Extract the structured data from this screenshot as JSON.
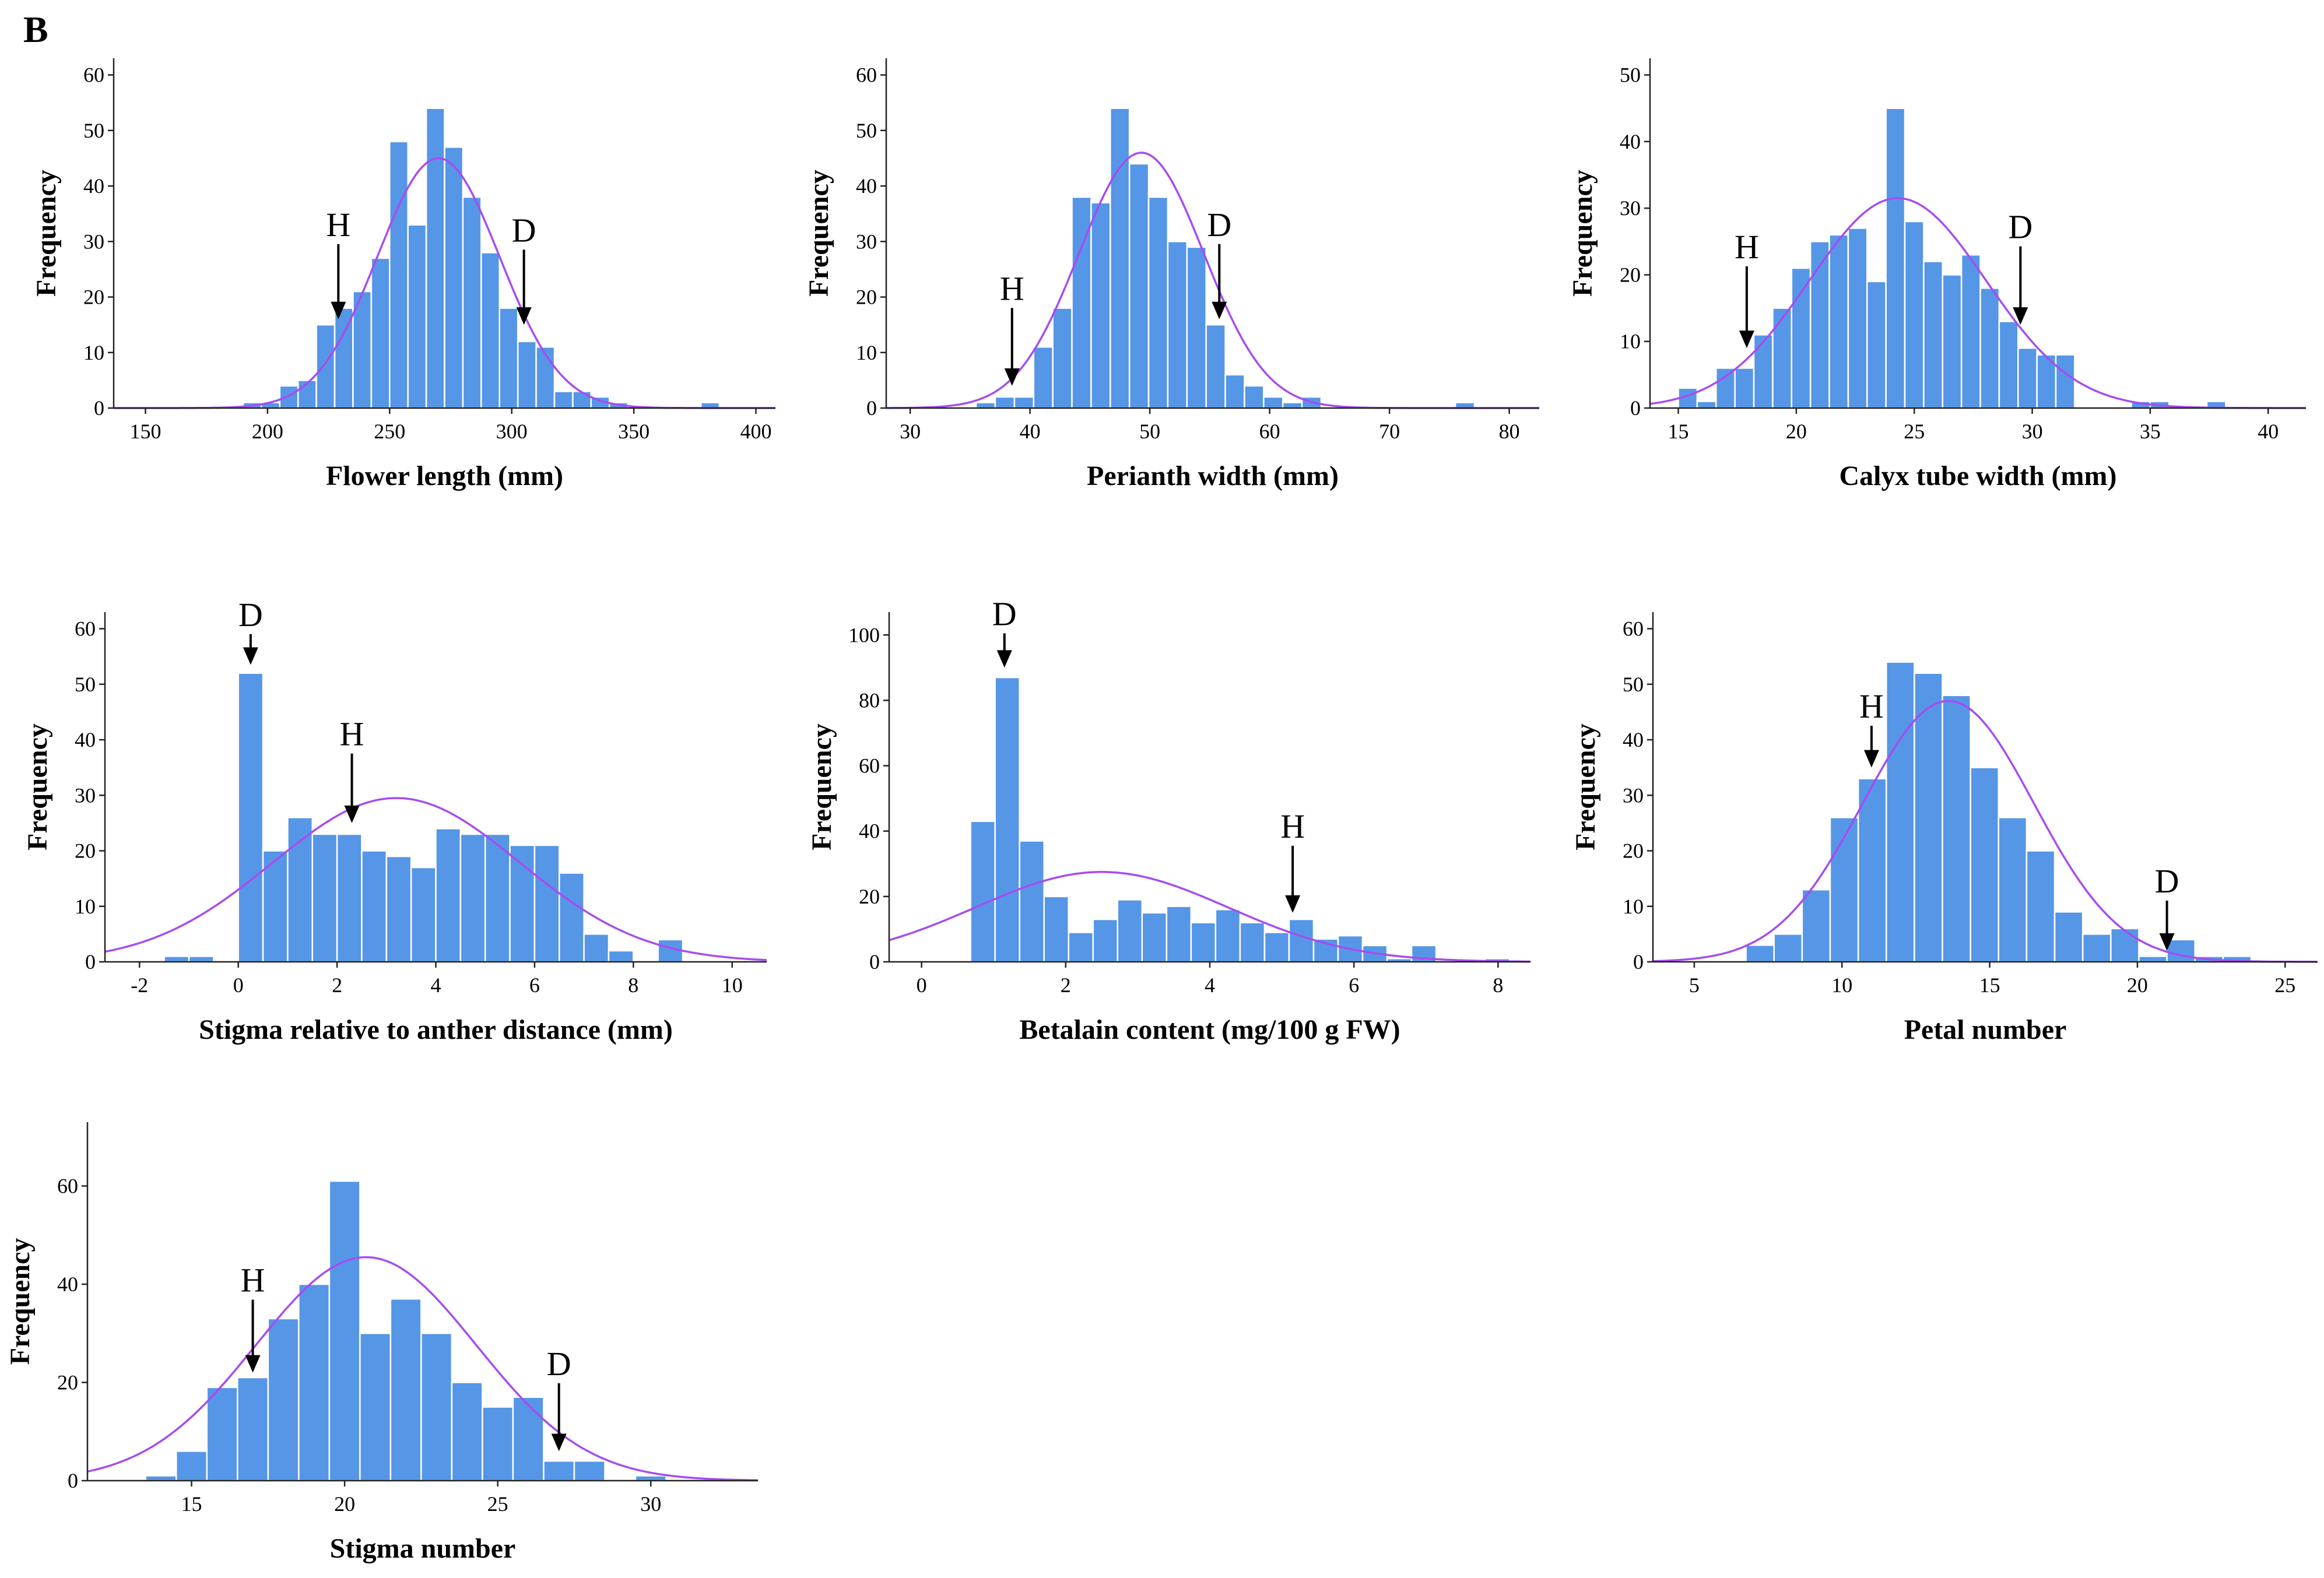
{
  "figure": {
    "panel_label": "B"
  },
  "chart_data": [
    {
      "type": "bar",
      "title": "",
      "xlabel": "Flower length (mm)",
      "ylabel": "Frequency",
      "xlim": [
        137,
        408
      ],
      "ylim": [
        0,
        63
      ],
      "xticks": [
        150,
        200,
        250,
        300,
        350,
        400
      ],
      "yticks": [
        0,
        10,
        20,
        30,
        40,
        50,
        60
      ],
      "bin_width": 7.5,
      "bin_starts": [
        190,
        197.5,
        205,
        212.5,
        220,
        227.5,
        235,
        242.5,
        250,
        257.5,
        265,
        272.5,
        280,
        287.5,
        295,
        302.5,
        310,
        317.5,
        325,
        332.5,
        340,
        347.5,
        355,
        362.5,
        370,
        377.5
      ],
      "values": [
        1,
        1,
        4,
        5,
        15,
        18,
        21,
        27,
        48,
        33,
        54,
        47,
        38,
        28,
        18,
        12,
        11,
        3,
        3,
        2,
        1,
        0,
        0,
        0,
        0,
        1
      ],
      "normal_curve": {
        "mean": 270,
        "sd": 25,
        "peak": 45
      },
      "annotations": [
        {
          "label": "H",
          "x": 229,
          "label_y": 31,
          "tip_y": 16
        },
        {
          "label": "D",
          "x": 305,
          "label_y": 30,
          "tip_y": 15
        }
      ]
    },
    {
      "type": "bar",
      "title": "",
      "xlabel": "Perianth width (mm)",
      "ylabel": "Frequency",
      "xlim": [
        28,
        82.5
      ],
      "ylim": [
        0,
        63
      ],
      "xticks": [
        30,
        40,
        50,
        60,
        70,
        80
      ],
      "yticks": [
        0,
        10,
        20,
        30,
        40,
        50,
        60
      ],
      "bin_width": 1.6,
      "bin_starts": [
        35.5,
        37.1,
        38.7,
        40.3,
        41.9,
        43.5,
        45.1,
        46.7,
        48.3,
        49.9,
        51.5,
        53.1,
        54.7,
        56.3,
        57.9,
        59.5,
        61.1,
        62.7,
        64.3,
        65.9,
        67.5,
        69.1,
        70.7,
        72.3,
        73.9,
        75.5
      ],
      "values": [
        1,
        2,
        2,
        11,
        18,
        38,
        37,
        54,
        44,
        38,
        30,
        29,
        15,
        6,
        4,
        2,
        1,
        2,
        0,
        0,
        0,
        0,
        0,
        0,
        0,
        1
      ],
      "normal_curve": {
        "mean": 49.3,
        "sd": 5.2,
        "peak": 46
      },
      "annotations": [
        {
          "label": "H",
          "x": 38.5,
          "label_y": 19.5,
          "tip_y": 4
        },
        {
          "label": "D",
          "x": 55.8,
          "label_y": 31,
          "tip_y": 16
        }
      ]
    },
    {
      "type": "bar",
      "title": "",
      "xlabel": "Calyx tube width (mm)",
      "ylabel": "Frequency",
      "xlim": [
        13.8,
        41.6
      ],
      "ylim": [
        0,
        52.5
      ],
      "xticks": [
        15,
        20,
        25,
        30,
        35,
        40
      ],
      "yticks": [
        0,
        10,
        20,
        30,
        40,
        50
      ],
      "bin_width": 0.8,
      "bin_starts": [
        15.0,
        15.8,
        16.6,
        17.4,
        18.2,
        19.0,
        19.8,
        20.6,
        21.4,
        22.2,
        23.0,
        23.8,
        24.6,
        25.4,
        26.2,
        27.0,
        27.8,
        28.6,
        29.4,
        30.2,
        31.0,
        31.8,
        32.6,
        33.4,
        34.2,
        35.0,
        35.8,
        36.6,
        37.4
      ],
      "values": [
        3,
        1,
        6,
        6,
        11,
        15,
        21,
        25,
        26,
        27,
        19,
        45,
        28,
        22,
        20,
        23,
        18,
        13,
        9,
        8,
        8,
        0,
        0,
        0,
        1,
        1,
        0,
        0,
        1
      ],
      "normal_curve": {
        "mean": 24.3,
        "sd": 3.75,
        "peak": 31.5
      },
      "annotations": [
        {
          "label": "H",
          "x": 17.9,
          "label_y": 22.5,
          "tip_y": 9
        },
        {
          "label": "D",
          "x": 29.5,
          "label_y": 25.5,
          "tip_y": 12.5
        }
      ]
    },
    {
      "type": "bar",
      "title": "",
      "xlabel": "Stigma relative to anther distance (mm)",
      "ylabel": "Frequency",
      "xlim": [
        -2.7,
        10.7
      ],
      "ylim": [
        0,
        63
      ],
      "xticks": [
        -2,
        0,
        2,
        4,
        6,
        8,
        10
      ],
      "yticks": [
        0,
        10,
        20,
        30,
        40,
        50,
        60
      ],
      "tick_labels": [
        "-2",
        "0",
        "2",
        "4",
        "6",
        "8",
        "10"
      ],
      "bin_width": 0.5,
      "bin_starts": [
        -1.5,
        -1.0,
        -0.5,
        0.0,
        0.5,
        1.0,
        1.5,
        2.0,
        2.5,
        3.0,
        3.5,
        4.0,
        4.5,
        5.0,
        5.5,
        6.0,
        6.5,
        7.0,
        7.5,
        8.0,
        8.5
      ],
      "values": [
        1,
        1,
        0,
        52,
        20,
        26,
        23,
        23,
        20,
        19,
        17,
        24,
        23,
        23,
        21,
        21,
        16,
        5,
        2,
        0,
        4
      ],
      "normal_curve": {
        "mean": 3.2,
        "sd": 2.5,
        "peak": 29.5
      },
      "annotations": [
        {
          "label": "D",
          "x": 0.25,
          "label_y": 60.5,
          "tip_y": 53.5
        },
        {
          "label": "H",
          "x": 2.3,
          "label_y": 39,
          "tip_y": 25
        }
      ]
    },
    {
      "type": "bar",
      "title": "",
      "xlabel": "Betalain content (mg/100 g FW)",
      "ylabel": "Frequency",
      "xlim": [
        -0.45,
        8.45
      ],
      "ylim": [
        0,
        107
      ],
      "xticks": [
        0,
        2,
        4,
        6,
        8
      ],
      "yticks": [
        0,
        20,
        40,
        60,
        80,
        100
      ],
      "bin_width": 0.34,
      "bin_starts": [
        0.68,
        1.02,
        1.36,
        1.7,
        2.04,
        2.38,
        2.72,
        3.06,
        3.4,
        3.74,
        4.08,
        4.42,
        4.76,
        5.1,
        5.44,
        5.78,
        6.12,
        6.46,
        6.8,
        7.14,
        7.48,
        7.82
      ],
      "values": [
        43,
        87,
        37,
        20,
        9,
        13,
        19,
        15,
        17,
        12,
        16,
        12,
        9,
        13,
        7,
        8,
        5,
        1,
        5,
        0,
        0,
        1
      ],
      "normal_curve": {
        "mean": 2.5,
        "sd": 1.75,
        "peak": 27.5
      },
      "annotations": [
        {
          "label": "D",
          "x": 1.15,
          "label_y": 103,
          "tip_y": 90
        },
        {
          "label": "H",
          "x": 5.15,
          "label_y": 38,
          "tip_y": 15
        }
      ]
    },
    {
      "type": "bar",
      "title": "",
      "xlabel": "Petal number",
      "ylabel": "Frequency",
      "xlim": [
        3.6,
        26.1
      ],
      "ylim": [
        0,
        63
      ],
      "xticks": [
        5,
        10,
        15,
        20,
        25
      ],
      "yticks": [
        0,
        10,
        20,
        30,
        40,
        50,
        60
      ],
      "bin_width": 0.95,
      "bin_starts": [
        6.75,
        7.7,
        8.65,
        9.6,
        10.55,
        11.5,
        12.45,
        13.4,
        14.35,
        15.3,
        16.25,
        17.2,
        18.15,
        19.1,
        20.05,
        21.0,
        21.95,
        22.9,
        23.85
      ],
      "values": [
        3,
        5,
        13,
        26,
        33,
        54,
        52,
        48,
        35,
        26,
        20,
        9,
        5,
        6,
        1,
        4,
        1,
        1,
        0
      ],
      "normal_curve": {
        "mean": 13.6,
        "sd": 2.9,
        "peak": 47
      },
      "annotations": [
        {
          "label": "H",
          "x": 11.0,
          "label_y": 44,
          "tip_y": 35
        },
        {
          "label": "D",
          "x": 21.0,
          "label_y": 12.5,
          "tip_y": 2
        }
      ]
    },
    {
      "type": "bar",
      "title": "",
      "xlabel": "Stigma number",
      "ylabel": "Frequency",
      "xlim": [
        11.6,
        33.5
      ],
      "ylim": [
        0,
        73
      ],
      "xticks": [
        15,
        20,
        25,
        30
      ],
      "yticks": [
        0,
        20,
        40,
        60
      ],
      "bin_width": 1.0,
      "bin_starts": [
        13.5,
        14.5,
        15.5,
        16.5,
        17.5,
        18.5,
        19.5,
        20.5,
        21.5,
        22.5,
        23.5,
        24.5,
        25.5,
        26.5,
        27.5,
        28.5,
        29.5
      ],
      "values": [
        1,
        6,
        19,
        21,
        33,
        40,
        61,
        30,
        37,
        30,
        20,
        15,
        17,
        4,
        4,
        0,
        1
      ],
      "normal_curve": {
        "mean": 20.7,
        "sd": 3.6,
        "peak": 45.5
      },
      "annotations": [
        {
          "label": "H",
          "x": 17.0,
          "label_y": 38.5,
          "tip_y": 22
        },
        {
          "label": "D",
          "x": 27.0,
          "label_y": 21.5,
          "tip_y": 6
        }
      ]
    }
  ]
}
